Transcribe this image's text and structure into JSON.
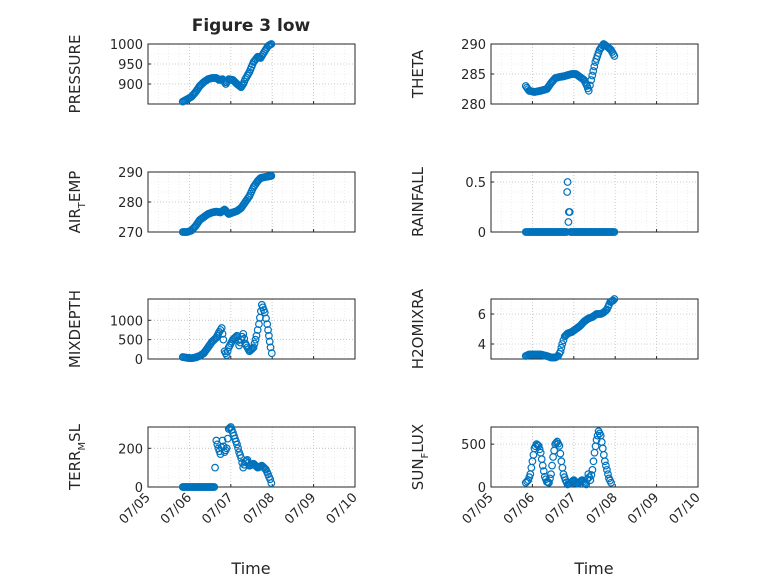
{
  "figure_title": "Figure 3 low",
  "x_axis_label": "Time",
  "x_tick_labels": [
    "07/05",
    "07/06",
    "07/07",
    "07/08",
    "07/09",
    "07/10"
  ],
  "colors": {
    "marker": "#0072BD",
    "axis": "#262626",
    "grid": "#c0c0c0"
  },
  "chart_data": [
    {
      "type": "scatter",
      "title": "Figure 3 low",
      "ylabel": "PRESSURE",
      "ylim": [
        850,
        1000
      ],
      "yticks": [
        900,
        950,
        1000
      ],
      "ytick_labels": [
        "900",
        "950",
        "1000"
      ],
      "x_range": [
        "07/05",
        "07/10"
      ],
      "grid": true,
      "marker": "o",
      "points": [
        [
          5.84,
          856
        ],
        [
          5.95,
          862
        ],
        [
          6.05,
          868
        ],
        [
          6.15,
          880
        ],
        [
          6.25,
          895
        ],
        [
          6.35,
          905
        ],
        [
          6.45,
          912
        ],
        [
          6.55,
          915
        ],
        [
          6.65,
          915
        ],
        [
          6.72,
          910
        ],
        [
          6.8,
          912
        ],
        [
          6.88,
          900
        ],
        [
          6.95,
          912
        ],
        [
          7.05,
          910
        ],
        [
          7.15,
          900
        ],
        [
          7.25,
          892
        ],
        [
          7.3,
          900
        ],
        [
          7.35,
          912
        ],
        [
          7.45,
          930
        ],
        [
          7.55,
          955
        ],
        [
          7.65,
          968
        ],
        [
          7.72,
          965
        ],
        [
          7.82,
          982
        ],
        [
          7.9,
          995
        ],
        [
          7.98,
          1000
        ]
      ]
    },
    {
      "type": "scatter",
      "ylabel": "THETA",
      "ylim": [
        280,
        290
      ],
      "yticks": [
        280,
        285,
        290
      ],
      "ytick_labels": [
        "280",
        "285",
        "290"
      ],
      "grid": true,
      "marker": "o",
      "points": [
        [
          5.84,
          283
        ],
        [
          5.92,
          282.2
        ],
        [
          6.05,
          282
        ],
        [
          6.2,
          282.2
        ],
        [
          6.35,
          282.5
        ],
        [
          6.45,
          283.5
        ],
        [
          6.55,
          284.3
        ],
        [
          6.65,
          284.5
        ],
        [
          6.75,
          284.6
        ],
        [
          6.85,
          284.8
        ],
        [
          6.95,
          285
        ],
        [
          7.05,
          285
        ],
        [
          7.15,
          284.5
        ],
        [
          7.25,
          284
        ],
        [
          7.32,
          283
        ],
        [
          7.36,
          282.2
        ],
        [
          7.42,
          284
        ],
        [
          7.52,
          287
        ],
        [
          7.62,
          289
        ],
        [
          7.72,
          290
        ],
        [
          7.82,
          289.5
        ],
        [
          7.9,
          289
        ],
        [
          7.98,
          288
        ]
      ]
    },
    {
      "type": "scatter",
      "ylabel": "AIR_TEMP",
      "ylim": [
        270,
        290
      ],
      "yticks": [
        270,
        280,
        290
      ],
      "ytick_labels": [
        "270",
        "280",
        "290"
      ],
      "grid": true,
      "marker": "o",
      "points": [
        [
          5.84,
          270
        ],
        [
          5.95,
          270
        ],
        [
          6.05,
          270.5
        ],
        [
          6.15,
          272
        ],
        [
          6.25,
          274
        ],
        [
          6.35,
          275
        ],
        [
          6.45,
          276
        ],
        [
          6.55,
          276.5
        ],
        [
          6.65,
          276.8
        ],
        [
          6.75,
          276.5
        ],
        [
          6.85,
          277.5
        ],
        [
          6.95,
          276
        ],
        [
          7.05,
          276.5
        ],
        [
          7.15,
          277
        ],
        [
          7.25,
          278
        ],
        [
          7.35,
          280
        ],
        [
          7.45,
          282
        ],
        [
          7.55,
          285
        ],
        [
          7.65,
          287
        ],
        [
          7.72,
          288
        ],
        [
          7.82,
          288.3
        ],
        [
          7.9,
          288.5
        ],
        [
          7.98,
          288.7
        ]
      ]
    },
    {
      "type": "scatter",
      "ylabel": "RAINFALL",
      "ylim": [
        0,
        0.6
      ],
      "yticks": [
        0,
        0.5
      ],
      "ytick_labels": [
        "0",
        "0.5"
      ],
      "grid": true,
      "marker": "o",
      "points": [
        [
          5.84,
          0
        ],
        [
          5.95,
          0
        ],
        [
          6.05,
          0
        ],
        [
          6.15,
          0
        ],
        [
          6.25,
          0
        ],
        [
          6.35,
          0
        ],
        [
          6.45,
          0
        ],
        [
          6.55,
          0
        ],
        [
          6.65,
          0
        ],
        [
          6.75,
          0
        ],
        [
          6.82,
          0
        ],
        [
          6.84,
          0.4
        ],
        [
          6.85,
          0.5
        ],
        [
          6.87,
          0.1
        ],
        [
          6.88,
          0.2
        ],
        [
          6.9,
          0.2
        ],
        [
          6.92,
          0
        ],
        [
          7.0,
          0
        ],
        [
          7.1,
          0
        ],
        [
          7.2,
          0
        ],
        [
          7.3,
          0
        ],
        [
          7.4,
          0
        ],
        [
          7.5,
          0
        ],
        [
          7.6,
          0
        ],
        [
          7.7,
          0
        ],
        [
          7.8,
          0
        ],
        [
          7.9,
          0
        ],
        [
          7.98,
          0
        ]
      ]
    },
    {
      "type": "scatter",
      "ylabel": "MIXDEPTH",
      "ylim": [
        0,
        1550
      ],
      "yticks": [
        0,
        500,
        1000
      ],
      "ytick_labels": [
        "0",
        "500",
        "1000"
      ],
      "grid": true,
      "marker": "o",
      "points": [
        [
          5.84,
          50
        ],
        [
          5.95,
          30
        ],
        [
          6.05,
          20
        ],
        [
          6.15,
          40
        ],
        [
          6.25,
          80
        ],
        [
          6.35,
          150
        ],
        [
          6.45,
          300
        ],
        [
          6.55,
          450
        ],
        [
          6.65,
          550
        ],
        [
          6.72,
          700
        ],
        [
          6.78,
          800
        ],
        [
          6.82,
          500
        ],
        [
          6.85,
          200
        ],
        [
          6.9,
          100
        ],
        [
          6.95,
          300
        ],
        [
          7.05,
          500
        ],
        [
          7.15,
          600
        ],
        [
          7.2,
          350
        ],
        [
          7.3,
          650
        ],
        [
          7.35,
          400
        ],
        [
          7.45,
          200
        ],
        [
          7.55,
          300
        ],
        [
          7.62,
          600
        ],
        [
          7.68,
          900
        ],
        [
          7.75,
          1400
        ],
        [
          7.82,
          1200
        ],
        [
          7.88,
          900
        ],
        [
          7.92,
          600
        ],
        [
          7.96,
          300
        ],
        [
          7.99,
          150
        ]
      ]
    },
    {
      "type": "scatter",
      "ylabel": "H2OMIXRA",
      "ylim": [
        3,
        7
      ],
      "yticks": [
        4,
        6
      ],
      "ytick_labels": [
        "4",
        "6"
      ],
      "grid": true,
      "marker": "o",
      "points": [
        [
          5.84,
          3.2
        ],
        [
          5.92,
          3.3
        ],
        [
          6.05,
          3.3
        ],
        [
          6.2,
          3.3
        ],
        [
          6.35,
          3.2
        ],
        [
          6.45,
          3.1
        ],
        [
          6.55,
          3.1
        ],
        [
          6.62,
          3.2
        ],
        [
          6.68,
          3.5
        ],
        [
          6.72,
          4.0
        ],
        [
          6.78,
          4.5
        ],
        [
          6.85,
          4.7
        ],
        [
          6.95,
          4.8
        ],
        [
          7.05,
          5.0
        ],
        [
          7.15,
          5.2
        ],
        [
          7.25,
          5.5
        ],
        [
          7.35,
          5.7
        ],
        [
          7.45,
          5.8
        ],
        [
          7.55,
          6.0
        ],
        [
          7.65,
          6.0
        ],
        [
          7.72,
          6.1
        ],
        [
          7.8,
          6.3
        ],
        [
          7.88,
          6.8
        ],
        [
          7.95,
          6.9
        ],
        [
          7.98,
          7.0
        ]
      ]
    },
    {
      "type": "scatter",
      "ylabel": "TERR_MSL",
      "ylim": [
        0,
        310
      ],
      "yticks": [
        0,
        200
      ],
      "ytick_labels": [
        "0",
        "200"
      ],
      "grid": true,
      "marker": "o",
      "points": [
        [
          5.84,
          0
        ],
        [
          5.95,
          0
        ],
        [
          6.05,
          0
        ],
        [
          6.15,
          0
        ],
        [
          6.25,
          0
        ],
        [
          6.35,
          0
        ],
        [
          6.45,
          0
        ],
        [
          6.55,
          0
        ],
        [
          6.6,
          0
        ],
        [
          6.62,
          100
        ],
        [
          6.65,
          240
        ],
        [
          6.7,
          200
        ],
        [
          6.75,
          170
        ],
        [
          6.8,
          240
        ],
        [
          6.85,
          180
        ],
        [
          6.9,
          200
        ],
        [
          6.95,
          300
        ],
        [
          7.0,
          310
        ],
        [
          7.05,
          280
        ],
        [
          7.1,
          250
        ],
        [
          7.15,
          220
        ],
        [
          7.2,
          180
        ],
        [
          7.25,
          150
        ],
        [
          7.3,
          100
        ],
        [
          7.35,
          130
        ],
        [
          7.4,
          140
        ],
        [
          7.45,
          110
        ],
        [
          7.55,
          120
        ],
        [
          7.65,
          100
        ],
        [
          7.75,
          110
        ],
        [
          7.85,
          90
        ],
        [
          7.95,
          40
        ],
        [
          7.98,
          20
        ]
      ]
    },
    {
      "type": "scatter",
      "ylabel": "SUN_FLUX",
      "ylim": [
        0,
        700
      ],
      "yticks": [
        0,
        500
      ],
      "ytick_labels": [
        "0",
        "500"
      ],
      "grid": true,
      "marker": "o",
      "points": [
        [
          5.84,
          50
        ],
        [
          5.9,
          80
        ],
        [
          5.95,
          150
        ],
        [
          6.0,
          300
        ],
        [
          6.05,
          450
        ],
        [
          6.1,
          500
        ],
        [
          6.15,
          480
        ],
        [
          6.2,
          400
        ],
        [
          6.25,
          250
        ],
        [
          6.3,
          120
        ],
        [
          6.35,
          60
        ],
        [
          6.4,
          50
        ],
        [
          6.45,
          150
        ],
        [
          6.5,
          350
        ],
        [
          6.55,
          500
        ],
        [
          6.6,
          530
        ],
        [
          6.65,
          480
        ],
        [
          6.7,
          300
        ],
        [
          6.75,
          150
        ],
        [
          6.8,
          80
        ],
        [
          6.85,
          30
        ],
        [
          6.9,
          40
        ],
        [
          6.95,
          60
        ],
        [
          7.0,
          80
        ],
        [
          7.05,
          50
        ],
        [
          7.1,
          40
        ],
        [
          7.15,
          60
        ],
        [
          7.2,
          80
        ],
        [
          7.25,
          50
        ],
        [
          7.3,
          30
        ],
        [
          7.35,
          150
        ],
        [
          7.4,
          80
        ],
        [
          7.45,
          200
        ],
        [
          7.5,
          400
        ],
        [
          7.55,
          550
        ],
        [
          7.6,
          650
        ],
        [
          7.65,
          600
        ],
        [
          7.7,
          450
        ],
        [
          7.75,
          300
        ],
        [
          7.8,
          200
        ],
        [
          7.85,
          100
        ],
        [
          7.9,
          50
        ]
      ]
    }
  ]
}
